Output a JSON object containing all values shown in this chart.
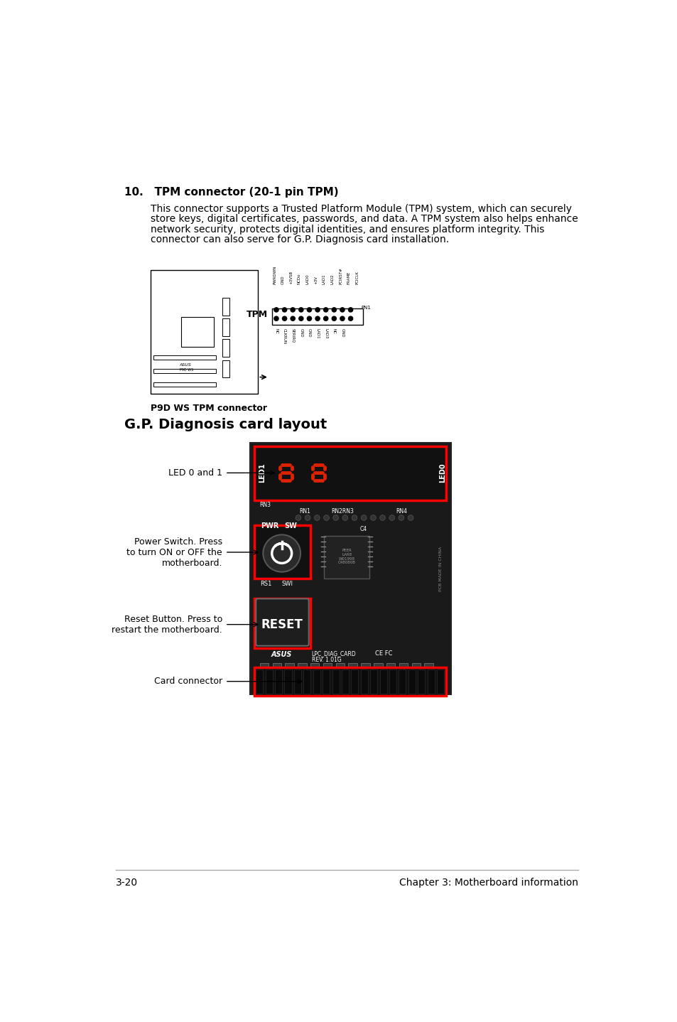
{
  "page_bg": "#ffffff",
  "section10_title": "10.   TPM connector (20-1 pin TPM)",
  "section10_body": "This connector supports a Trusted Platform Module (TPM) system, which can securely\nstore keys, digital certificates, passwords, and data. A TPM system also helps enhance\nnetwork security, protects digital identities, and ensures platform integrity. This\nconnector can also serve for G.P. Diagnosis card installation.",
  "tpm_caption": "P9D WS TPM connector",
  "gp_title": "G.P. Diagnosis card layout",
  "label_led01": "LED 0 and 1",
  "label_power": "Power Switch. Press\nto turn ON or OFF the\nmotherboard.",
  "label_reset": "Reset Button. Press to\nrestart the motherboard.",
  "label_card": "Card connector",
  "footer_left": "3-20",
  "footer_right": "Chapter 3: Motherboard information",
  "top_pins": [
    "PWRDWN",
    "GND",
    "+3VSB",
    "NCDo",
    "LAD0",
    "+3V",
    "LAD1",
    "LAD2",
    "PCIRST#",
    "FRAME",
    "PCICLK"
  ],
  "bot_pins": [
    "NC",
    "CLKRUN",
    "SERIRQ",
    "GND",
    "GND",
    "LAD1",
    "LAD3",
    "NC",
    "GND"
  ]
}
